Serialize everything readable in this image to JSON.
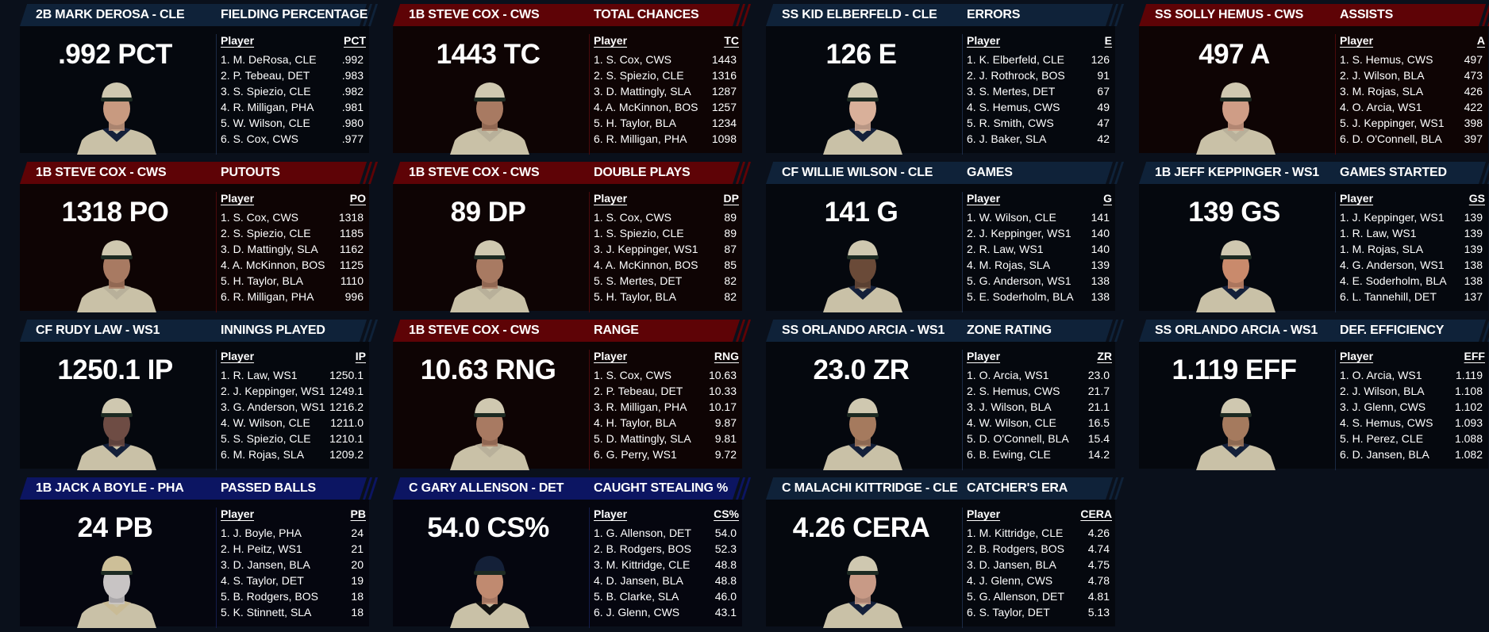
{
  "colors": {
    "navy": "#0f2239",
    "red": "#5e0306",
    "indigo": "#0c1562",
    "page": "#0a101b"
  },
  "cards": [
    {
      "theme": "navy",
      "player": "2B MARK DEROSA - CLE",
      "stat": "FIELDING PERCENTAGE",
      "value": ".992 PCT",
      "col": "PCT",
      "cap": "#cfc8b0",
      "skin": "#c89a80",
      "collar": "#14203a",
      "rows": [
        [
          "1. M. DeRosa, CLE",
          ".992"
        ],
        [
          "2. P. Tebeau, DET",
          ".983"
        ],
        [
          "3. S. Spiezio, CLE",
          ".982"
        ],
        [
          "4. R. Milligan, PHA",
          ".981"
        ],
        [
          "5. W. Wilson, CLE",
          ".980"
        ],
        [
          "6. S. Cox, CWS",
          ".977"
        ]
      ]
    },
    {
      "theme": "red",
      "player": "1B STEVE COX - CWS",
      "stat": "TOTAL CHANCES",
      "value": "1443 TC",
      "col": "TC",
      "cap": "#cfc8b0",
      "skin": "#a87a62",
      "collar": "#b8b09a",
      "rows": [
        [
          "1. S. Cox, CWS",
          "1443"
        ],
        [
          "2. S. Spiezio, CLE",
          "1316"
        ],
        [
          "3. D. Mattingly, SLA",
          "1287"
        ],
        [
          "4. A. McKinnon, BOS",
          "1257"
        ],
        [
          "5. H. Taylor, BLA",
          "1234"
        ],
        [
          "6. R. Milligan, PHA",
          "1098"
        ]
      ]
    },
    {
      "theme": "navy",
      "player": "SS KID ELBERFELD - CLE",
      "stat": "ERRORS",
      "value": "126 E",
      "col": "E",
      "cap": "#cfc8b0",
      "skin": "#d9b09a",
      "collar": "#14203a",
      "rows": [
        [
          "1. K. Elberfeld, CLE",
          "126"
        ],
        [
          "2. J. Rothrock, BOS",
          "91"
        ],
        [
          "3. S. Mertes, DET",
          "67"
        ],
        [
          "4. S. Hemus, CWS",
          "49"
        ],
        [
          "5. R. Smith, CWS",
          "47"
        ],
        [
          "6. J. Baker, SLA",
          "42"
        ]
      ]
    },
    {
      "theme": "red",
      "player": "SS SOLLY HEMUS - CWS",
      "stat": "ASSISTS",
      "value": "497 A",
      "col": "A",
      "cap": "#cfc8b0",
      "skin": "#cf9d86",
      "collar": "#b8b09a",
      "rows": [
        [
          "1. S. Hemus, CWS",
          "497"
        ],
        [
          "2. J. Wilson, BLA",
          "473"
        ],
        [
          "3. M. Rojas, SLA",
          "426"
        ],
        [
          "4. O. Arcia, WS1",
          "422"
        ],
        [
          "5. J. Keppinger, WS1",
          "398"
        ],
        [
          "6. D. O'Connell, BLA",
          "397"
        ]
      ]
    },
    {
      "theme": "red",
      "player": "1B STEVE COX - CWS",
      "stat": "PUTOUTS",
      "value": "1318 PO",
      "col": "PO",
      "cap": "#cfc8b0",
      "skin": "#a87a62",
      "collar": "#b8b09a",
      "rows": [
        [
          "1. S. Cox, CWS",
          "1318"
        ],
        [
          "2. S. Spiezio, CLE",
          "1185"
        ],
        [
          "3. D. Mattingly, SLA",
          "1162"
        ],
        [
          "4. A. McKinnon, BOS",
          "1125"
        ],
        [
          "5. H. Taylor, BLA",
          "1110"
        ],
        [
          "6. R. Milligan, PHA",
          "996"
        ]
      ]
    },
    {
      "theme": "red",
      "player": "1B STEVE COX - CWS",
      "stat": "DOUBLE PLAYS",
      "value": "89 DP",
      "col": "DP",
      "cap": "#cfc8b0",
      "skin": "#a87a62",
      "collar": "#b8b09a",
      "rows": [
        [
          "1. S. Cox, CWS",
          "89"
        ],
        [
          "1. S. Spiezio, CLE",
          "89"
        ],
        [
          "3. J. Keppinger, WS1",
          "87"
        ],
        [
          "4. A. McKinnon, BOS",
          "85"
        ],
        [
          "5. S. Mertes, DET",
          "82"
        ],
        [
          "5. H. Taylor, BLA",
          "82"
        ]
      ]
    },
    {
      "theme": "navy",
      "player": "CF WILLIE WILSON - CLE",
      "stat": "GAMES",
      "value": "141 G",
      "col": "G",
      "cap": "#cfc8b0",
      "skin": "#6a4a38",
      "collar": "#14203a",
      "rows": [
        [
          "1. W. Wilson, CLE",
          "141"
        ],
        [
          "2. J. Keppinger, WS1",
          "140"
        ],
        [
          "2. R. Law, WS1",
          "140"
        ],
        [
          "4. M. Rojas, SLA",
          "139"
        ],
        [
          "5. G. Anderson, WS1",
          "138"
        ],
        [
          "5. E. Soderholm, BLA",
          "138"
        ]
      ]
    },
    {
      "theme": "navy",
      "player": "1B JEFF KEPPINGER - WS1",
      "stat": "GAMES STARTED",
      "value": "139 GS",
      "col": "GS",
      "cap": "#cfc8b0",
      "skin": "#c98a6c",
      "collar": "#14203a",
      "rows": [
        [
          "1. J. Keppinger, WS1",
          "139"
        ],
        [
          "1. R. Law, WS1",
          "139"
        ],
        [
          "1. M. Rojas, SLA",
          "139"
        ],
        [
          "4. G. Anderson, WS1",
          "138"
        ],
        [
          "4. E. Soderholm, BLA",
          "138"
        ],
        [
          "6. L. Tannehill, DET",
          "137"
        ]
      ]
    },
    {
      "theme": "navy",
      "player": "CF RUDY LAW - WS1",
      "stat": "INNINGS PLAYED",
      "value": "1250.1 IP",
      "col": "IP",
      "cap": "#cfc8b0",
      "skin": "#6e4c44",
      "collar": "#14203a",
      "rows": [
        [
          "1. R. Law, WS1",
          "1250.1"
        ],
        [
          "2. J. Keppinger, WS1",
          "1249.1"
        ],
        [
          "3. G. Anderson, WS1",
          "1216.2"
        ],
        [
          "4. W. Wilson, CLE",
          "1211.0"
        ],
        [
          "5. S. Spiezio, CLE",
          "1210.1"
        ],
        [
          "6. M. Rojas, SLA",
          "1209.2"
        ]
      ]
    },
    {
      "theme": "red",
      "player": "1B STEVE COX - CWS",
      "stat": "RANGE",
      "value": "10.63 RNG",
      "col": "RNG",
      "cap": "#cfc8b0",
      "skin": "#a87a62",
      "collar": "#b8b09a",
      "rows": [
        [
          "1. S. Cox, CWS",
          "10.63"
        ],
        [
          "2. P. Tebeau, DET",
          "10.33"
        ],
        [
          "3. R. Milligan, PHA",
          "10.17"
        ],
        [
          "4. H. Taylor, BLA",
          "9.87"
        ],
        [
          "5. D. Mattingly, SLA",
          "9.81"
        ],
        [
          "6. G. Perry, WS1",
          "9.72"
        ]
      ]
    },
    {
      "theme": "navy",
      "player": "SS ORLANDO ARCIA - WS1",
      "stat": "ZONE RATING",
      "value": "23.0 ZR",
      "col": "ZR",
      "cap": "#cfc8b0",
      "skin": "#a57a5e",
      "collar": "#14203a",
      "rows": [
        [
          "1. O. Arcia, WS1",
          "23.0"
        ],
        [
          "2. S. Hemus, CWS",
          "21.7"
        ],
        [
          "3. J. Wilson, BLA",
          "21.1"
        ],
        [
          "4. W. Wilson, CLE",
          "16.5"
        ],
        [
          "5. D. O'Connell, BLA",
          "15.4"
        ],
        [
          "6. B. Ewing, CLE",
          "14.2"
        ]
      ]
    },
    {
      "theme": "navy",
      "player": "SS ORLANDO ARCIA - WS1",
      "stat": "DEF. EFFICIENCY",
      "value": "1.119 EFF",
      "col": "EFF",
      "cap": "#cfc8b0",
      "skin": "#a57a5e",
      "collar": "#14203a",
      "rows": [
        [
          "1. O. Arcia, WS1",
          "1.119"
        ],
        [
          "2. J. Wilson, BLA",
          "1.108"
        ],
        [
          "3. J. Glenn, CWS",
          "1.102"
        ],
        [
          "4. S. Hemus, CWS",
          "1.093"
        ],
        [
          "5. H. Perez, CLE",
          "1.088"
        ],
        [
          "6. D. Jansen, BLA",
          "1.082"
        ]
      ]
    },
    {
      "theme": "indigo",
      "player": "1B JACK A BOYLE - PHA",
      "stat": "PASSED BALLS",
      "value": "24 PB",
      "col": "PB",
      "cap": "#cdbf98",
      "skin": "#c8c4c4",
      "collar": "#c9bb95",
      "rows": [
        [
          "1. J. Boyle, PHA",
          "24"
        ],
        [
          "2. H. Peitz, WS1",
          "21"
        ],
        [
          "3. D. Jansen, BLA",
          "20"
        ],
        [
          "4. S. Taylor, DET",
          "19"
        ],
        [
          "5. B. Rodgers, BOS",
          "18"
        ],
        [
          "5. K. Stinnett, SLA",
          "18"
        ]
      ]
    },
    {
      "theme": "indigo",
      "player": "C GARY ALLENSON - DET",
      "stat": "CAUGHT STEALING %",
      "value": "54.0 CS%",
      "col": "CS%",
      "cap": "#142038",
      "skin": "#c08a70",
      "collar": "#111111",
      "rows": [
        [
          "1. G. Allenson, DET",
          "54.0"
        ],
        [
          "2. B. Rodgers, BOS",
          "52.3"
        ],
        [
          "3. M. Kittridge, CLE",
          "48.8"
        ],
        [
          "4. D. Jansen, BLA",
          "48.8"
        ],
        [
          "5. B. Clarke, SLA",
          "46.0"
        ],
        [
          "6. J. Glenn, CWS",
          "43.1"
        ]
      ]
    },
    {
      "theme": "navy",
      "player": "C MALACHI KITTRIDGE - CLE",
      "stat": "CATCHER'S ERA",
      "value": "4.26 CERA",
      "col": "CERA",
      "cap": "#cfc8b0",
      "skin": "#c89a86",
      "collar": "#14203a",
      "rows": [
        [
          "1. M. Kittridge, CLE",
          "4.26"
        ],
        [
          "2. B. Rodgers, BOS",
          "4.74"
        ],
        [
          "3. D. Jansen, BLA",
          "4.75"
        ],
        [
          "4. J. Glenn, CWS",
          "4.78"
        ],
        [
          "5. G. Allenson, DET",
          "4.81"
        ],
        [
          "6. S. Taylor, DET",
          "5.13"
        ]
      ]
    }
  ],
  "labels": {
    "player_col": "Player"
  }
}
